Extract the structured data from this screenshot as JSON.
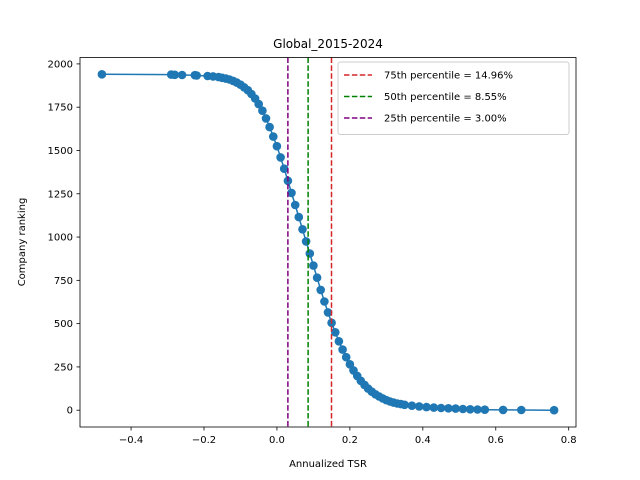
{
  "chart_data": {
    "type": "line",
    "title": "Global_2015-2024",
    "xlabel": "Annualized TSR",
    "ylabel": "Company ranking",
    "xlim": [
      -0.54,
      0.82
    ],
    "ylim": [
      -97,
      2037
    ],
    "xticks": [
      -0.4,
      -0.2,
      0.0,
      0.2,
      0.4,
      0.6,
      0.8
    ],
    "xtick_labels": [
      "−0.4",
      "−0.2",
      "0.0",
      "0.2",
      "0.4",
      "0.6",
      "0.8"
    ],
    "yticks": [
      0,
      250,
      500,
      750,
      1000,
      1250,
      1500,
      1750,
      2000
    ],
    "ytick_labels": [
      "0",
      "250",
      "500",
      "750",
      "1000",
      "1250",
      "1500",
      "1750",
      "2000"
    ],
    "grid": false,
    "legend_placement": "top-right",
    "series": [
      {
        "color": "#1f77b4",
        "marker": "circle",
        "x": [
          -0.48,
          -0.29,
          -0.28,
          -0.26,
          -0.225,
          -0.22,
          -0.19,
          -0.175,
          -0.16,
          -0.15,
          -0.14,
          -0.13,
          -0.12,
          -0.11,
          -0.1,
          -0.09,
          -0.08,
          -0.07,
          -0.06,
          -0.05,
          -0.04,
          -0.03,
          -0.02,
          -0.01,
          0.0,
          0.01,
          0.02,
          0.03,
          0.04,
          0.05,
          0.06,
          0.07,
          0.08,
          0.09,
          0.1,
          0.11,
          0.12,
          0.13,
          0.14,
          0.15,
          0.16,
          0.17,
          0.18,
          0.19,
          0.2,
          0.21,
          0.22,
          0.23,
          0.24,
          0.25,
          0.26,
          0.27,
          0.28,
          0.29,
          0.3,
          0.31,
          0.32,
          0.33,
          0.34,
          0.35,
          0.37,
          0.39,
          0.41,
          0.43,
          0.45,
          0.47,
          0.49,
          0.51,
          0.53,
          0.55,
          0.57,
          0.62,
          0.67,
          0.76
        ],
        "y": [
          1940,
          1938,
          1937,
          1936,
          1935,
          1933,
          1930,
          1928,
          1924,
          1920,
          1915,
          1910,
          1902,
          1892,
          1880,
          1865,
          1848,
          1826,
          1800,
          1768,
          1730,
          1685,
          1635,
          1580,
          1525,
          1460,
          1395,
          1325,
          1255,
          1185,
          1115,
          1045,
          975,
          905,
          835,
          765,
          695,
          628,
          565,
          505,
          450,
          398,
          350,
          306,
          265,
          230,
          198,
          170,
          146,
          125,
          107,
          92,
          79,
          68,
          58,
          50,
          44,
          39,
          35,
          31,
          26,
          22,
          18,
          15,
          13,
          11,
          9,
          7,
          5,
          4,
          3,
          2,
          1,
          0
        ]
      }
    ],
    "vlines": [
      {
        "x": 0.1496,
        "color": "#d62728",
        "label": "75th percentile = 14.96%"
      },
      {
        "x": 0.0855,
        "color": "#008000",
        "label": "50th percentile = 8.55%"
      },
      {
        "x": 0.03,
        "color": "#800080",
        "label": "25th percentile = 3.00%"
      }
    ]
  }
}
